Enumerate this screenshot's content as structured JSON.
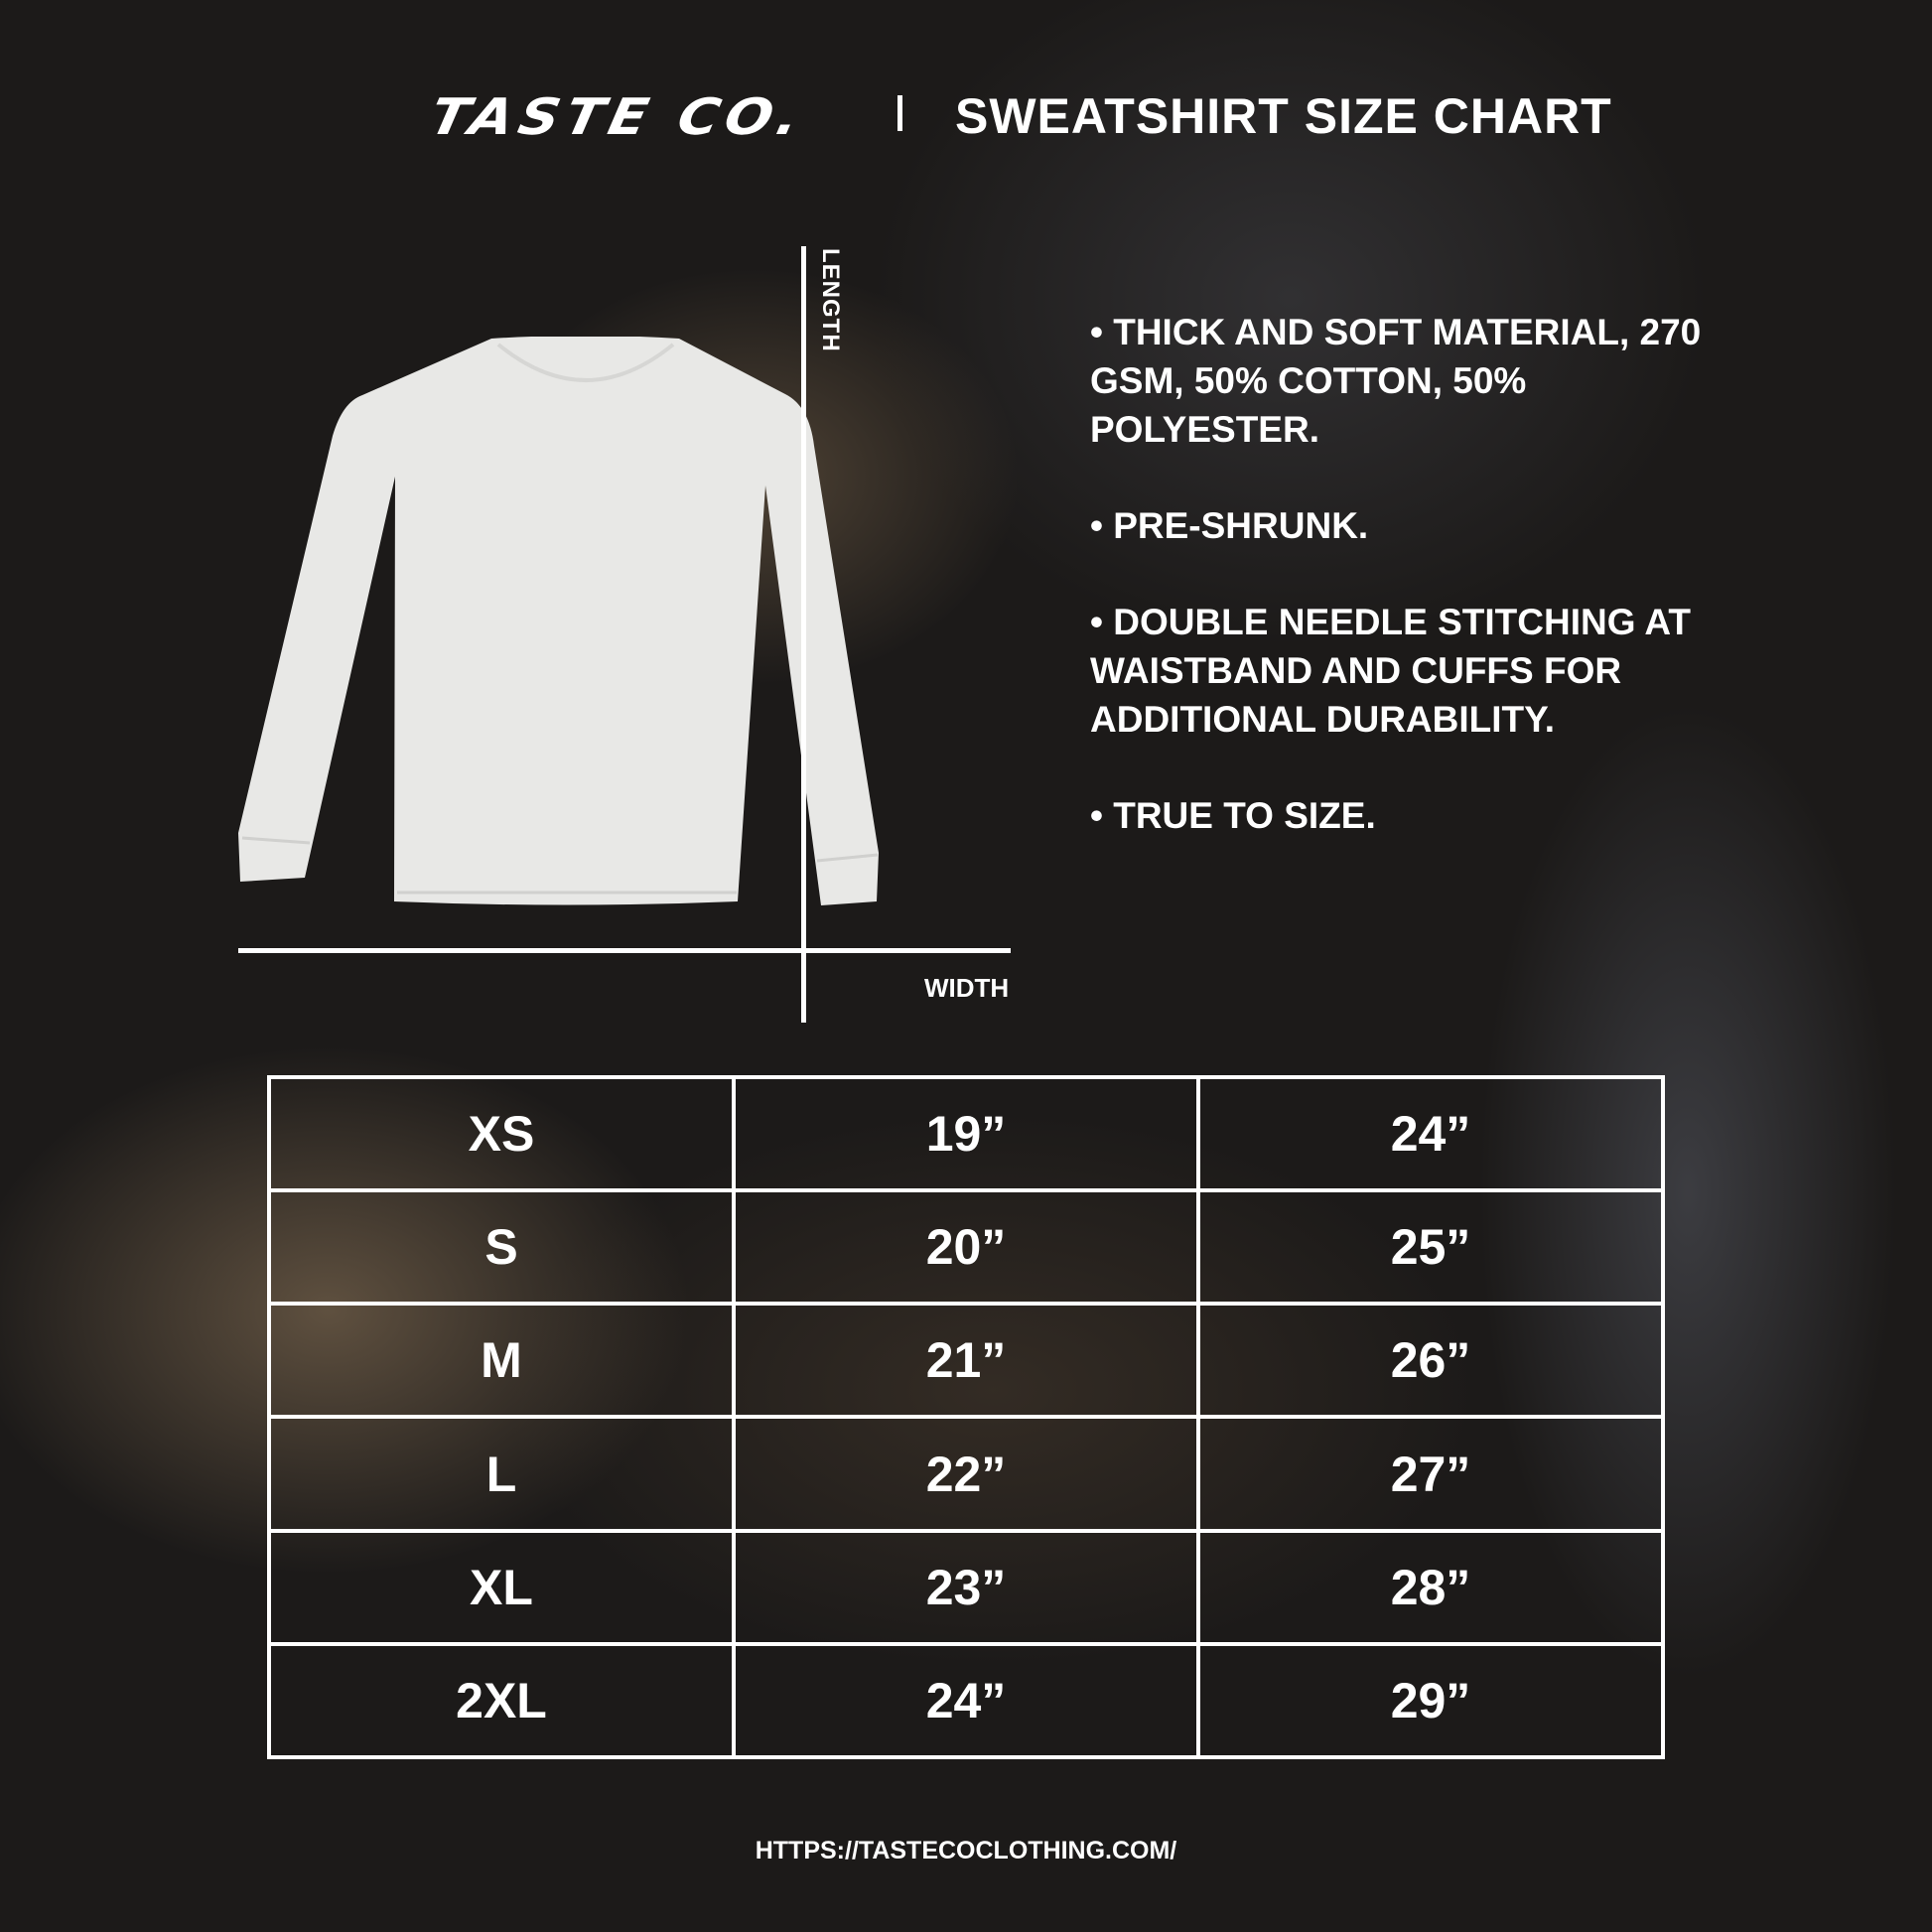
{
  "header": {
    "brand": "TASTE CO.",
    "title": "SWEATSHIRT SIZE CHART"
  },
  "diagram": {
    "length_label": "LENGTH",
    "width_label": "WIDTH",
    "shirt_color": "#e8e8e6"
  },
  "features": [
    "• THICK AND SOFT MATERIAL, 270 GSM, 50% COTTON, 50% POLYESTER.",
    "• PRE-SHRUNK.",
    "• DOUBLE NEEDLE STITCHING AT WAISTBAND AND CUFFS FOR ADDITIONAL DURABILITY.",
    "• TRUE TO SIZE."
  ],
  "size_table": {
    "rows": [
      [
        "XS",
        "19”",
        "24”"
      ],
      [
        "S",
        "20”",
        "25”"
      ],
      [
        "M",
        "21”",
        "26”"
      ],
      [
        "L",
        "22”",
        "27”"
      ],
      [
        "XL",
        "23”",
        "28”"
      ],
      [
        "2XL",
        "24”",
        "29”"
      ]
    ]
  },
  "footer": {
    "url": "HTTPS://TASTECOCLOTHING.COM/"
  }
}
